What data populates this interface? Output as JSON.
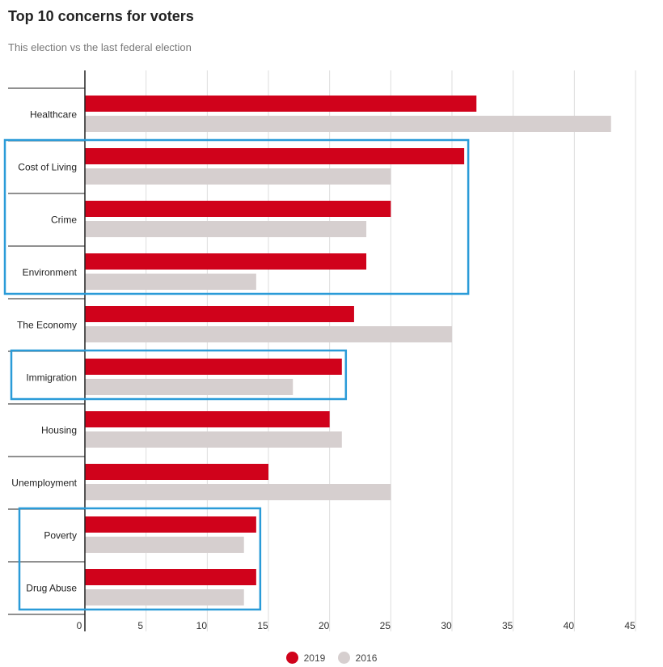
{
  "chart_data": {
    "type": "bar",
    "orientation": "horizontal",
    "title": "Top 10 concerns for voters",
    "subtitle": "This election vs the last federal election",
    "categories": [
      "Healthcare",
      "Cost of Living",
      "Crime",
      "Environment",
      "The Economy",
      "Immigration",
      "Housing",
      "Unemployment",
      "Poverty",
      "Drug Abuse"
    ],
    "series": [
      {
        "name": "2019",
        "color": "#d0021b",
        "values": [
          32,
          31,
          25,
          23,
          22,
          21,
          20,
          15,
          14,
          14
        ]
      },
      {
        "name": "2016",
        "color": "#d6cfcf",
        "values": [
          43,
          25,
          23,
          14,
          30,
          17,
          21,
          25,
          13,
          13
        ]
      }
    ],
    "xlim": [
      0,
      45
    ],
    "xticks": [
      0,
      5,
      10,
      15,
      20,
      25,
      30,
      35,
      40,
      45
    ],
    "grid": true,
    "legend_position": "bottom-center",
    "highlight_color": "#2a9bd8",
    "highlight_groups": [
      [
        "Cost of Living",
        "Crime",
        "Environment"
      ],
      [
        "Immigration"
      ],
      [
        "Poverty",
        "Drug Abuse"
      ]
    ]
  }
}
